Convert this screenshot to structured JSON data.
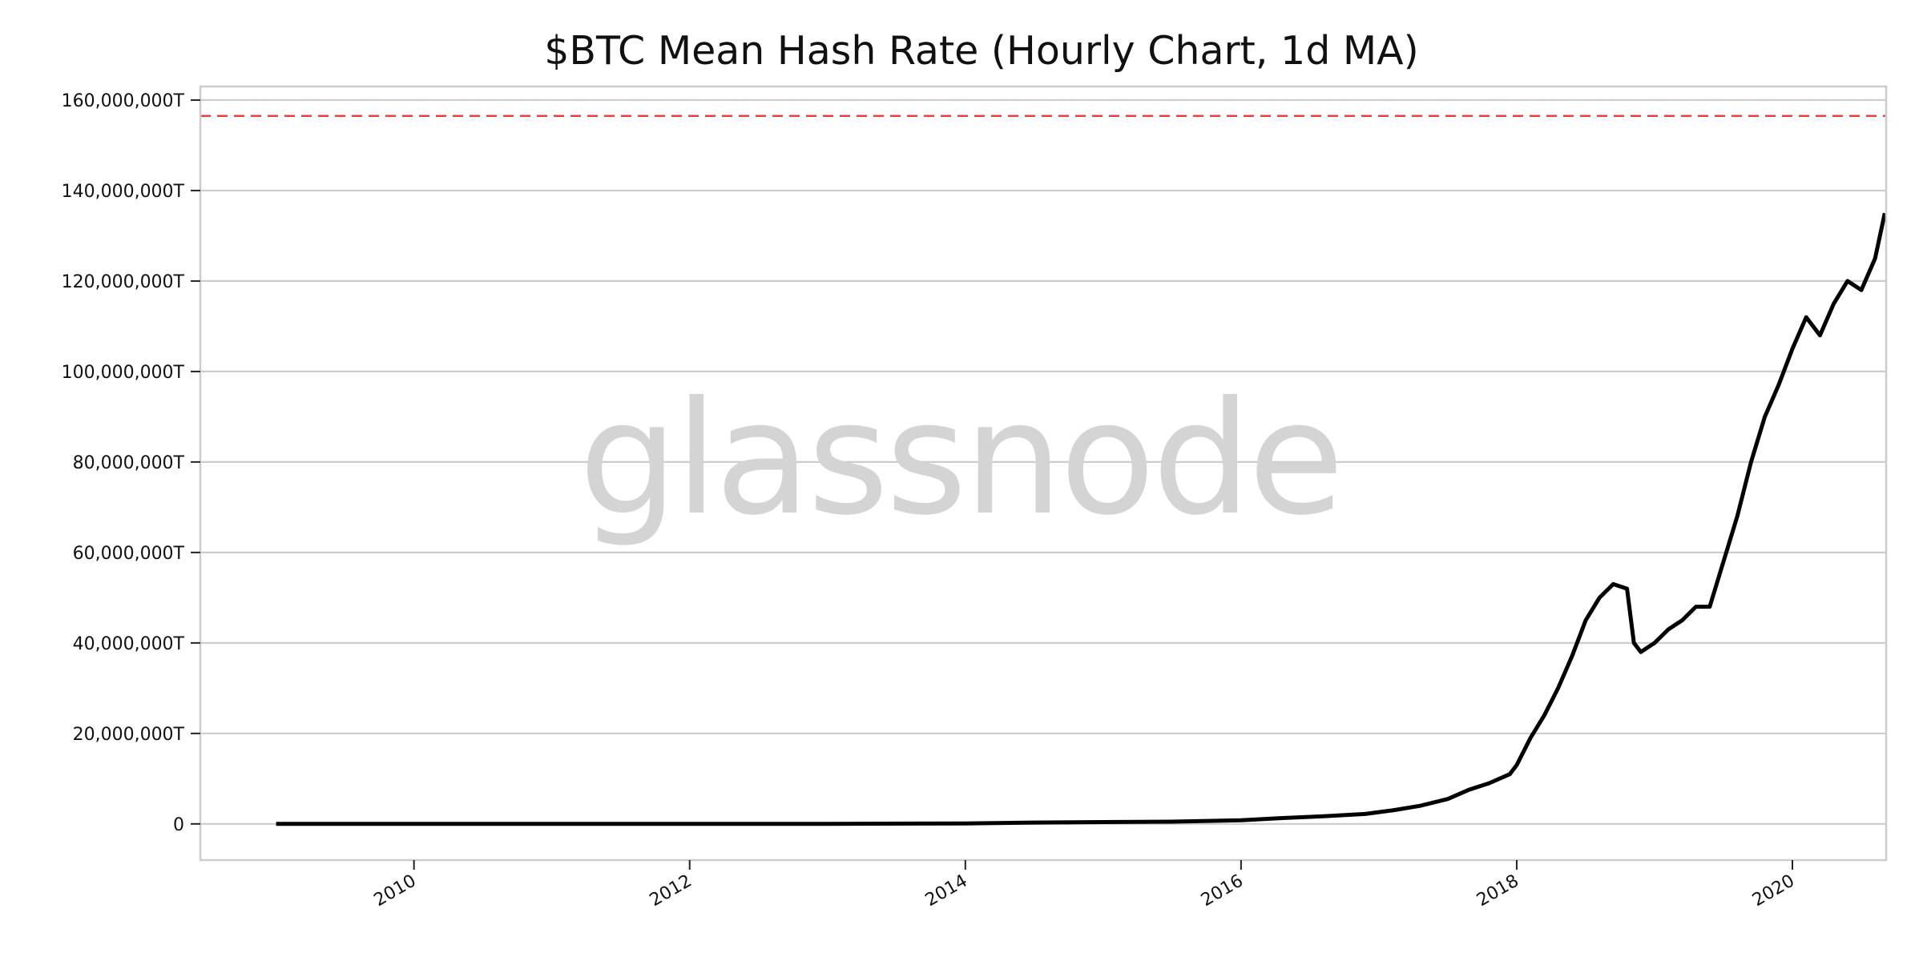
{
  "chart_data": {
    "type": "line",
    "title": "$BTC Mean Hash Rate (Hourly Chart, 1d MA)",
    "watermark": "glassnode",
    "xlabel": "",
    "ylabel": "",
    "x_range": [
      2008.45,
      2020.68
    ],
    "ylim": [
      -8000000,
      163000000
    ],
    "y_ticks": [
      0,
      20000000,
      40000000,
      60000000,
      80000000,
      100000000,
      120000000,
      140000000,
      160000000
    ],
    "y_tick_labels": [
      "0",
      "20,000,000T",
      "40,000,000T",
      "60,000,000T",
      "80,000,000T",
      "100,000,000T",
      "120,000,000T",
      "140,000,000T",
      "160,000,000T"
    ],
    "x_ticks": [
      2010,
      2012,
      2014,
      2016,
      2018,
      2020
    ],
    "x_tick_labels": [
      "2010",
      "2012",
      "2014",
      "2016",
      "2018",
      "2020"
    ],
    "grid": "horizontal",
    "reference_line": {
      "value": 156500000,
      "style": "dashed",
      "color": "#e8403f"
    },
    "colors": {
      "series": "#000000",
      "grid": "#cccccc",
      "spine": "#cccccc"
    },
    "series": [
      {
        "x": [
          2009.0,
          2010.0,
          2011.0,
          2012.0,
          2013.0,
          2014.0,
          2014.5,
          2015.0,
          2015.5,
          2016.0,
          2016.3,
          2016.6,
          2016.9,
          2017.1,
          2017.3,
          2017.5,
          2017.65,
          2017.8,
          2017.95,
          2018.0,
          2018.1,
          2018.2,
          2018.3,
          2018.4,
          2018.5,
          2018.6,
          2018.7,
          2018.8,
          2018.85,
          2018.9,
          2019.0,
          2019.1,
          2019.2,
          2019.3,
          2019.4,
          2019.5,
          2019.6,
          2019.7,
          2019.8,
          2019.9,
          2020.0,
          2020.1,
          2020.2,
          2020.3,
          2020.4,
          2020.5,
          2020.6,
          2020.67
        ],
        "y": [
          0,
          0,
          0,
          0,
          0,
          100000,
          300000,
          400000,
          500000,
          800000,
          1300000,
          1700000,
          2200000,
          3000000,
          4000000,
          5500000,
          7500000,
          9000000,
          11000000,
          13000000,
          19000000,
          24000000,
          30000000,
          37000000,
          45000000,
          50000000,
          53000000,
          52000000,
          40000000,
          38000000,
          40000000,
          43000000,
          45000000,
          48000000,
          48000000,
          58000000,
          68000000,
          80000000,
          90000000,
          97000000,
          105000000,
          112000000,
          108000000,
          115000000,
          120000000,
          118000000,
          125000000,
          135000000
        ]
      }
    ]
  }
}
